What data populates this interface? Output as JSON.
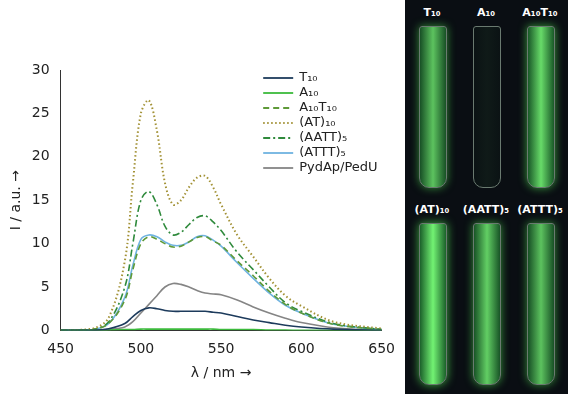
{
  "chart_data": {
    "type": "line",
    "x_label": "λ / nm →",
    "y_label": "I / a.u. →",
    "xlim": [
      450,
      650
    ],
    "xticks": [
      450,
      500,
      550,
      600,
      650
    ],
    "ylim": [
      0,
      30
    ],
    "yticks": [
      0,
      5,
      10,
      15,
      20,
      25,
      30
    ],
    "grid": false,
    "legend": "upper right",
    "x": [
      450,
      470,
      480,
      490,
      495,
      500,
      505,
      510,
      515,
      520,
      525,
      530,
      535,
      540,
      545,
      550,
      560,
      570,
      580,
      590,
      600,
      620,
      650
    ],
    "series": [
      {
        "name": "T₁₀",
        "color": "#1d3b5c",
        "line_style": "solid",
        "values": [
          0,
          0,
          0.2,
          0.8,
          1.6,
          2.3,
          2.6,
          2.5,
          2.3,
          2.2,
          2.2,
          2.2,
          2.2,
          2.2,
          2.1,
          2,
          1.6,
          1.2,
          0.9,
          0.6,
          0.4,
          0.15,
          0
        ]
      },
      {
        "name": "A₁₀",
        "color": "#3cba3c",
        "line_style": "solid",
        "values": [
          0,
          0,
          0.05,
          0.1,
          0.1,
          0.15,
          0.15,
          0.15,
          0.15,
          0.15,
          0.15,
          0.15,
          0.15,
          0.15,
          0.15,
          0.1,
          0.1,
          0.1,
          0.05,
          0.05,
          0,
          0,
          0
        ]
      },
      {
        "name": "A₁₀T₁₀",
        "color": "#5e9a38",
        "line_style": "dashed",
        "values": [
          0,
          0.1,
          0.8,
          3.5,
          7,
          10,
          10.8,
          10.5,
          10,
          9.6,
          9.7,
          10.2,
          10.7,
          10.8,
          10.3,
          9.8,
          8,
          6.3,
          4.5,
          3,
          2,
          0.7,
          0.1
        ]
      },
      {
        "name": "(AT)₁₀",
        "color": "#a39236",
        "line_style": "dotted",
        "values": [
          0,
          0.2,
          1.5,
          8,
          17,
          25,
          26.5,
          23,
          17,
          14.5,
          15,
          16.5,
          17.6,
          17.8,
          16.5,
          14.5,
          11,
          8.5,
          6,
          4,
          2.8,
          1,
          0.2
        ]
      },
      {
        "name": "(AATT)₅",
        "color": "#2f8a3c",
        "line_style": "dashdot",
        "values": [
          0,
          0.1,
          1,
          5,
          10,
          15,
          16,
          14.5,
          12,
          11,
          11.3,
          12.2,
          13,
          13.2,
          12.5,
          11.5,
          9,
          7,
          5,
          3.2,
          2.2,
          0.8,
          0.1
        ]
      },
      {
        "name": "(ATTT)₅",
        "color": "#6fb3e0",
        "line_style": "solid",
        "values": [
          0,
          0.1,
          0.8,
          3.8,
          7.5,
          10.5,
          11,
          10.8,
          10.2,
          9.8,
          9.8,
          10.2,
          10.8,
          10.9,
          10.4,
          9.7,
          7.8,
          6,
          4.3,
          2.9,
          2,
          0.7,
          0.1
        ]
      },
      {
        "name": "PydAp/PedU",
        "color": "#858585",
        "line_style": "solid",
        "values": [
          0,
          0,
          0.1,
          0.4,
          1,
          2,
          3,
          4,
          5,
          5.4,
          5.3,
          5,
          4.6,
          4.3,
          4.2,
          4.1,
          3.5,
          2.7,
          2,
          1.4,
          0.9,
          0.3,
          0
        ]
      }
    ]
  },
  "photo": {
    "labels": [
      "T₁₀",
      "A₁₀",
      "A₁₀T₁₀",
      "(AT)₁₀",
      "(AATT)₅",
      "(ATTT)₅"
    ]
  }
}
